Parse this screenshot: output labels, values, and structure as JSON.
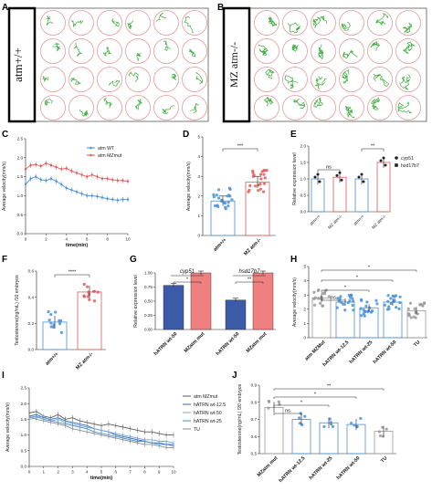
{
  "panels": {
    "A": {
      "letter": "A",
      "genotype": "atm+/+",
      "rows": 4,
      "cols": 6
    },
    "B": {
      "letter": "B",
      "genotype": "MZ atm-/-",
      "rows": 4,
      "cols": 6
    },
    "C": {
      "letter": "C"
    },
    "D": {
      "letter": "D"
    },
    "E": {
      "letter": "E"
    },
    "F": {
      "letter": "F"
    },
    "G": {
      "letter": "G"
    },
    "H": {
      "letter": "H"
    },
    "I": {
      "letter": "I"
    },
    "J": {
      "letter": "J"
    }
  },
  "colors": {
    "wt": "#4a90d9",
    "mut": "#e05a5a",
    "gray": "#9a9a9a",
    "bar_blue": "#3b5ba9",
    "bar_red": "#f08080"
  },
  "chart_data": [
    {
      "id": "C",
      "type": "line",
      "xlabel": "time(min)",
      "ylabel": "Average velocity(mm/s)",
      "xlim": [
        0,
        10
      ],
      "ylim": [
        0.0,
        2.5
      ],
      "xticks": [
        "0",
        "2",
        "4",
        "6",
        "8",
        "10"
      ],
      "yticks": [
        "0.0",
        "0.5",
        "1.0",
        "1.5",
        "2.0",
        "2.5"
      ],
      "legend": [
        "atm WT",
        "atm MZmut"
      ],
      "x": [
        0,
        0.5,
        1,
        1.5,
        2,
        2.5,
        3,
        3.5,
        4,
        4.5,
        5,
        5.5,
        6,
        6.5,
        7,
        7.5,
        8,
        8.5,
        9,
        9.5,
        10
      ],
      "series": [
        {
          "name": "atm WT",
          "values": [
            1.3,
            1.45,
            1.5,
            1.42,
            1.4,
            1.45,
            1.38,
            1.3,
            1.2,
            1.15,
            1.1,
            1.05,
            1.0,
            1.0,
            0.98,
            0.95,
            0.92,
            0.9,
            0.88,
            0.9,
            0.9
          ]
        },
        {
          "name": "atm MZmut",
          "values": [
            1.7,
            1.8,
            1.82,
            1.78,
            1.85,
            1.8,
            1.75,
            1.7,
            1.72,
            1.65,
            1.6,
            1.55,
            1.5,
            1.55,
            1.5,
            1.45,
            1.45,
            1.42,
            1.4,
            1.4,
            1.38
          ]
        }
      ]
    },
    {
      "id": "D",
      "type": "bar",
      "ylabel": "Average velocity(mm/s)",
      "ylim": [
        0,
        5
      ],
      "yticks": [
        "0",
        "1",
        "2",
        "3",
        "4",
        "5"
      ],
      "categories": [
        "atm+/+",
        "MZ atm-/-"
      ],
      "values": [
        1.75,
        2.7
      ],
      "errors": [
        0.25,
        0.3
      ],
      "significance": "***"
    },
    {
      "id": "E",
      "type": "bar",
      "ylabel": "Relative expression level",
      "ylim": [
        0.0,
        2.0
      ],
      "yticks": [
        "0.0",
        "0.5",
        "1.0",
        "1.5",
        "2.0"
      ],
      "categories": [
        "atm+/+",
        "MZ atm-/-",
        "atm+/+",
        "MZ atm-/-"
      ],
      "values": [
        1.0,
        1.05,
        1.0,
        1.5
      ],
      "legend": [
        "cyp51",
        "hsd17b7"
      ],
      "significance": [
        "ns",
        "**"
      ]
    },
    {
      "id": "F",
      "type": "bar",
      "ylabel": "Testosterone(ng/mL) /10 embryos",
      "ylim": [
        0.0,
        0.6
      ],
      "yticks": [
        "0.0",
        "0.2",
        "0.4",
        "0.6"
      ],
      "categories": [
        "atm+/+",
        "MZ atm-/-"
      ],
      "values": [
        0.21,
        0.44
      ],
      "significance": "****"
    },
    {
      "id": "G",
      "type": "bar",
      "ylabel": "Relative expression level",
      "ylim": [
        0.0,
        1.0
      ],
      "yticks": [
        "0.00",
        "0.25",
        "0.50",
        "0.75",
        "1.00"
      ],
      "categories": [
        "hATRN wt-50",
        "MZatm mut",
        "hATRN wt-50",
        "MZatm mut"
      ],
      "values": [
        0.78,
        1.0,
        0.52,
        1.0
      ],
      "groups": [
        "cyp51",
        "hsd17b7"
      ],
      "significance": [
        "*",
        "**"
      ]
    },
    {
      "id": "H",
      "type": "bar",
      "ylabel": "Average velocity(mm/s)",
      "ylim": [
        0,
        5
      ],
      "yticks": [
        "0",
        "1",
        "2",
        "3",
        "4",
        "5"
      ],
      "categories": [
        "atm MZMut",
        "hATRN wt-12.5",
        "hATRN wt-25",
        "hATRN wt-50",
        "TU"
      ],
      "values": [
        2.8,
        2.5,
        2.1,
        2.5,
        1.9
      ],
      "significance": [
        "ns",
        "*",
        "*",
        "*"
      ]
    },
    {
      "id": "I",
      "type": "line",
      "xlabel": "time(min)",
      "ylabel": "Average velocity(mm/s)",
      "xlim": [
        0,
        10
      ],
      "ylim": [
        0.0,
        2.5
      ],
      "xticks": [
        "0",
        "1",
        "2",
        "3",
        "4",
        "5",
        "6",
        "7",
        "8",
        "9",
        "10"
      ],
      "yticks": [
        "0.0",
        "0.5",
        "1.0",
        "1.5",
        "2.0",
        "2.5"
      ],
      "legend": [
        "atm MZmut",
        "hATRN wt-12.5",
        "hATRN wt-50",
        "hATRN wt-25",
        "TU"
      ],
      "x": [
        0,
        0.5,
        1,
        1.5,
        2,
        2.5,
        3,
        3.5,
        4,
        4.5,
        5,
        5.5,
        6,
        6.5,
        7,
        7.5,
        8,
        8.5,
        9,
        9.5,
        10
      ],
      "series": [
        {
          "name": "atm MZmut",
          "values": [
            1.7,
            1.75,
            1.6,
            1.55,
            1.65,
            1.5,
            1.55,
            1.45,
            1.4,
            1.35,
            1.3,
            1.35,
            1.3,
            1.25,
            1.2,
            1.15,
            1.1,
            1.1,
            1.05,
            1.0,
            1.0
          ]
        },
        {
          "name": "hATRN wt-12.5",
          "values": [
            1.6,
            1.65,
            1.55,
            1.5,
            1.55,
            1.45,
            1.4,
            1.35,
            1.3,
            1.2,
            1.15,
            1.1,
            1.0,
            0.95,
            0.9,
            0.85,
            0.8,
            0.75,
            0.75,
            0.7,
            0.7
          ]
        },
        {
          "name": "hATRN wt-50",
          "values": [
            1.5,
            1.55,
            1.6,
            1.45,
            1.5,
            1.4,
            1.35,
            1.3,
            1.25,
            1.2,
            1.15,
            1.1,
            1.05,
            1.0,
            0.95,
            0.9,
            0.85,
            0.85,
            0.8,
            0.8,
            0.75
          ]
        },
        {
          "name": "hATRN wt-25",
          "values": [
            1.55,
            1.6,
            1.5,
            1.45,
            1.4,
            1.35,
            1.3,
            1.25,
            1.2,
            1.1,
            1.05,
            1.0,
            0.95,
            0.9,
            0.85,
            0.8,
            0.8,
            0.75,
            0.7,
            0.7,
            0.65
          ]
        },
        {
          "name": "TU",
          "values": [
            1.6,
            1.5,
            1.45,
            1.4,
            1.35,
            1.3,
            1.2,
            1.15,
            1.1,
            1.05,
            1.0,
            0.95,
            0.9,
            0.85,
            0.8,
            0.75,
            0.7,
            0.7,
            0.65,
            0.6,
            0.6
          ]
        }
      ]
    },
    {
      "id": "J",
      "type": "bar",
      "ylabel": "Testosterone(ng/mL) /20 embryos",
      "ylim": [
        0.5,
        0.9
      ],
      "yticks": [
        "0.5",
        "0.6",
        "0.7",
        "0.8",
        "0.9"
      ],
      "categories": [
        "MZatm mut",
        "hATRN wt-12.5",
        "hATRN wt-25",
        "hATRN wt-50",
        "TU"
      ],
      "values": [
        0.77,
        0.7,
        0.68,
        0.67,
        0.63
      ],
      "significance": [
        "ns",
        "*",
        "*",
        "**"
      ]
    }
  ]
}
